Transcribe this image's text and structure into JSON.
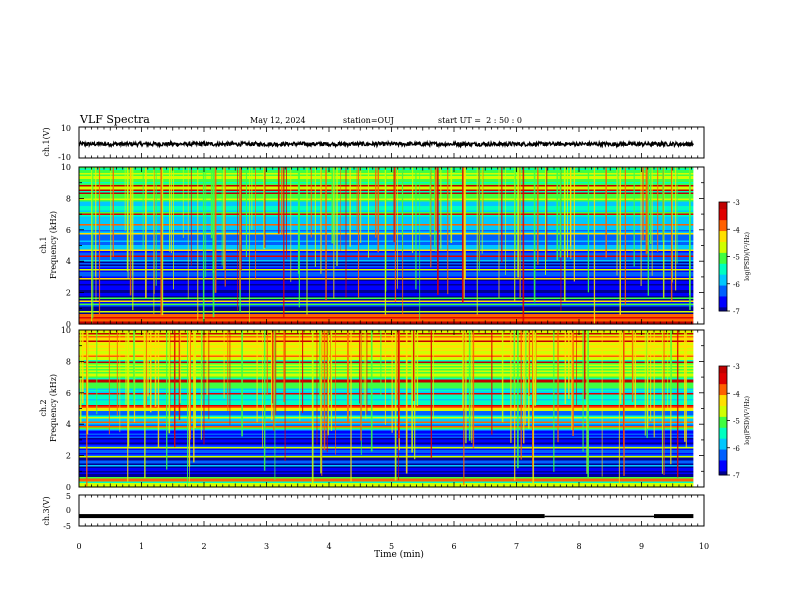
{
  "header": {
    "title": "VLF Spectra",
    "date": "May 12, 2024",
    "station": "station=OUJ",
    "start_ut": "start UT =  2 : 50 : 0"
  },
  "chart_data": [
    {
      "type": "line",
      "panel": "ch1-waveform",
      "ylabel": "ch.1(V)",
      "ylim": [
        -10,
        10
      ],
      "yticks": [
        "10",
        "-10"
      ],
      "xlim": [
        0,
        10
      ],
      "description_values": {
        "mean": -1,
        "amplitude": 1.3
      }
    },
    {
      "type": "heatmap",
      "panel": "ch1-spectrogram",
      "ylabel": "ch.1\nFrequency (kHz)",
      "ylabel_line1": "ch.1",
      "ylabel_line2": "Frequency (kHz)",
      "ylim": [
        0,
        10
      ],
      "yticks": [
        "0",
        "2",
        "4",
        "6",
        "8",
        "10"
      ],
      "xlim": [
        0,
        10
      ],
      "xdata_end": 9.83,
      "colorbar": {
        "label": "log(PSD)(V²/Hz)",
        "range": [
          -7,
          -3
        ],
        "ticks": [
          "-3",
          "-4",
          "-5",
          "-6",
          "-7"
        ]
      },
      "band_levels": [
        {
          "f": [
            0,
            0.6
          ],
          "level": -3.4
        },
        {
          "f": [
            0.6,
            1.2
          ],
          "level": -6.7
        },
        {
          "f": [
            1.2,
            3.0
          ],
          "level": -6.8
        },
        {
          "f": [
            3.0,
            4.0
          ],
          "level": -6.6
        },
        {
          "f": [
            4.0,
            5.4
          ],
          "level": -6.1
        },
        {
          "f": [
            5.4,
            6.4
          ],
          "level": -5.9
        },
        {
          "f": [
            6.4,
            7.8
          ],
          "level": -5.6
        },
        {
          "f": [
            7.8,
            10
          ],
          "level": -4.9
        }
      ]
    },
    {
      "type": "heatmap",
      "panel": "ch2-spectrogram",
      "ylabel_line1": "ch.2",
      "ylabel_line2": "Frequency (kHz)",
      "ylim": [
        0,
        10
      ],
      "yticks": [
        "0",
        "2",
        "4",
        "6",
        "8",
        "10"
      ],
      "xlim": [
        0,
        10
      ],
      "xdata_end": 9.83,
      "colorbar": {
        "label": "log(PSD)(V²/Hz)",
        "range": [
          -7,
          -3
        ],
        "ticks": [
          "-3",
          "-4",
          "-5",
          "-6",
          "-7"
        ]
      },
      "band_levels": [
        {
          "f": [
            0,
            0.6
          ],
          "level": -5.0
        },
        {
          "f": [
            0.6,
            2.0
          ],
          "level": -6.7
        },
        {
          "f": [
            2.0,
            3.6
          ],
          "level": -6.5
        },
        {
          "f": [
            3.6,
            5.0
          ],
          "level": -6.0
        },
        {
          "f": [
            5.0,
            6.4
          ],
          "level": -5.4
        },
        {
          "f": [
            6.4,
            8.4
          ],
          "level": -4.9
        },
        {
          "f": [
            8.4,
            10
          ],
          "level": -4.4
        }
      ]
    },
    {
      "type": "line",
      "panel": "ch3-waveform",
      "ylabel": "ch.3(V)",
      "ylim": [
        -5,
        5
      ],
      "yticks": [
        "5",
        "0",
        "-5"
      ],
      "xlim": [
        0,
        10
      ],
      "xlabel": "Time (min)",
      "xticks": [
        "0",
        "1",
        "2",
        "3",
        "4",
        "5",
        "6",
        "7",
        "8",
        "9",
        "10"
      ],
      "segments": [
        {
          "x": [
            0,
            7.45
          ],
          "value": -1.8
        },
        {
          "x": [
            7.45,
            9.2
          ],
          "value": -2.0
        },
        {
          "x": [
            9.2,
            9.83
          ],
          "value": -1.8
        }
      ]
    }
  ],
  "colors": {
    "cmap": [
      "#000090",
      "#0000ff",
      "#0060ff",
      "#00c8ff",
      "#00ffc0",
      "#40ff40",
      "#d0ff00",
      "#ffe000",
      "#ff6000",
      "#e00000",
      "#c00000"
    ]
  }
}
